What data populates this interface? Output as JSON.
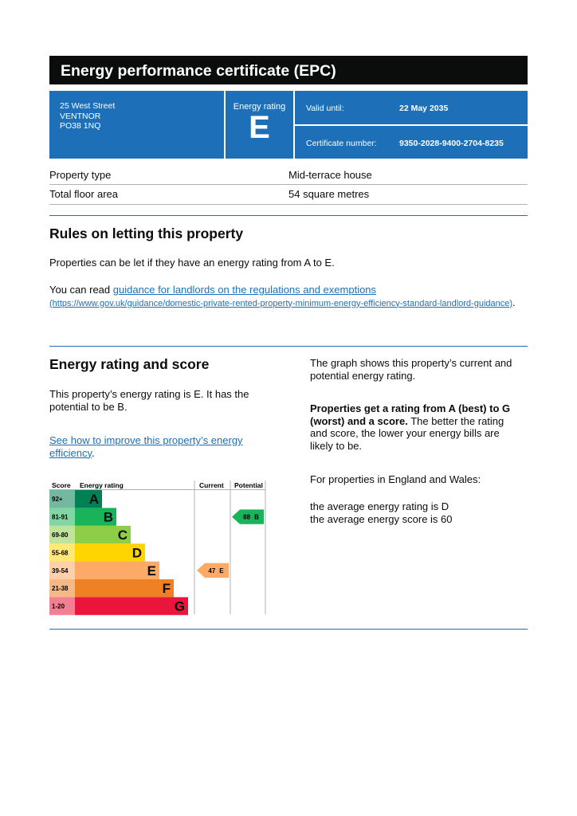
{
  "header": {
    "title": "Energy performance certificate (EPC)"
  },
  "summary": {
    "address": [
      "25 West Street",
      "VENTNOR",
      "PO38 1NQ"
    ],
    "rating_label": "Energy rating",
    "rating": "E",
    "valid_label": "Valid until:",
    "valid_value": "22 May 2035",
    "certificate_label": "Certificate number:",
    "certificate_value": "9350-2028-9400-2704-8235"
  },
  "property_table": {
    "rows": [
      [
        "Property type",
        "Mid-terrace house"
      ],
      [
        "Total floor area",
        "54 square metres"
      ]
    ]
  },
  "rules": {
    "heading": "Rules on letting this property",
    "para1": "Properties can be let if they have an energy rating from A to E.",
    "para2_prefix": "You can read ",
    "link": "guidance for landlords on the regulations and exemptions",
    "url": "(https://www.gov.uk/guidance/domestic-private-rented-property-minimum-energy-efficiency-standard-landlord-guidance)",
    "para2_suffix": "."
  },
  "energy": {
    "heading": "Energy rating and score",
    "para1": "This property’s energy rating is E. It has the potential to be B.",
    "link": "See how to improve this property’s energy efficiency",
    "link_suffix": ".",
    "right_para1": "The graph shows this property’s current and potential energy rating.",
    "right_para2_bold": "Properties get a rating from A (best) to G (worst) and a score.",
    "right_para2_rest": " The better the rating and score, the lower your energy bills are likely to be.",
    "right_para3": "For properties in England and Wales:",
    "right_para4_line1": "the average energy rating is D",
    "right_para4_line2": "the average energy score is 60"
  },
  "chart": {
    "headers": [
      "Score",
      "Energy rating",
      "Current",
      "Potential"
    ],
    "bands": [
      {
        "score": "92+",
        "letter": "A",
        "color": "#008054"
      },
      {
        "score": "81-91",
        "letter": "B",
        "color": "#19b459"
      },
      {
        "score": "69-80",
        "letter": "C",
        "color": "#8dce46"
      },
      {
        "score": "55-68",
        "letter": "D",
        "color": "#ffd500"
      },
      {
        "score": "39-54",
        "letter": "E",
        "color": "#fcaa65"
      },
      {
        "score": "21-38",
        "letter": "F",
        "color": "#ef8023"
      },
      {
        "score": "1-20",
        "letter": "G",
        "color": "#e9153b"
      }
    ],
    "current": {
      "score": 47,
      "letter": "E"
    },
    "potential": {
      "score": 88,
      "letter": "B"
    }
  }
}
